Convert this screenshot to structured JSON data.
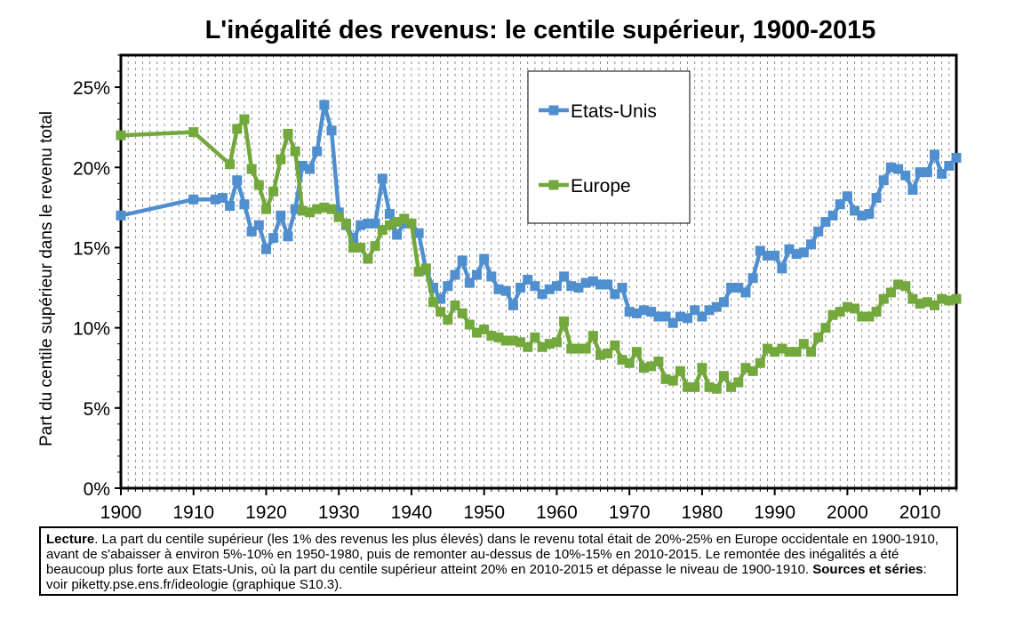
{
  "chart_data": {
    "type": "line",
    "title": "L'inégalité des revenus: le centile supérieur, 1900-2015",
    "ylabel": "Part du centile supérieur dans le revenu total",
    "xlabel": "",
    "xlim": [
      1900,
      2015
    ],
    "ylim": [
      0,
      0.27
    ],
    "xticks": [
      1900,
      1910,
      1920,
      1930,
      1940,
      1950,
      1960,
      1970,
      1980,
      1990,
      2000,
      2010
    ],
    "yticks": [
      0,
      0.05,
      0.1,
      0.15,
      0.2,
      0.25
    ],
    "ytick_labels": [
      "0%",
      "5%",
      "10%",
      "15%",
      "20%",
      "25%"
    ],
    "grid": "vertical dashed",
    "legend_position": "top-right",
    "series": [
      {
        "name": "Etats-Unis",
        "color": "#4f8fcf",
        "x": [
          1900,
          1910,
          1913,
          1914,
          1915,
          1916,
          1917,
          1918,
          1919,
          1920,
          1921,
          1922,
          1923,
          1924,
          1925,
          1926,
          1927,
          1928,
          1929,
          1930,
          1931,
          1932,
          1933,
          1934,
          1935,
          1936,
          1937,
          1938,
          1939,
          1940,
          1941,
          1942,
          1943,
          1944,
          1945,
          1946,
          1947,
          1948,
          1949,
          1950,
          1951,
          1952,
          1953,
          1954,
          1955,
          1956,
          1957,
          1958,
          1959,
          1960,
          1961,
          1962,
          1963,
          1964,
          1965,
          1966,
          1967,
          1968,
          1969,
          1970,
          1971,
          1972,
          1973,
          1974,
          1975,
          1976,
          1977,
          1978,
          1979,
          1980,
          1981,
          1982,
          1983,
          1984,
          1985,
          1986,
          1987,
          1988,
          1989,
          1990,
          1991,
          1992,
          1993,
          1994,
          1995,
          1996,
          1997,
          1998,
          1999,
          2000,
          2001,
          2002,
          2003,
          2004,
          2005,
          2006,
          2007,
          2008,
          2009,
          2010,
          2011,
          2012,
          2013,
          2014,
          2015
        ],
        "values": [
          0.17,
          0.18,
          0.18,
          0.181,
          0.176,
          0.192,
          0.177,
          0.16,
          0.164,
          0.149,
          0.156,
          0.17,
          0.157,
          0.174,
          0.201,
          0.199,
          0.21,
          0.239,
          0.223,
          0.172,
          0.164,
          0.156,
          0.164,
          0.165,
          0.165,
          0.193,
          0.171,
          0.158,
          0.165,
          0.165,
          0.159,
          0.136,
          0.125,
          0.118,
          0.126,
          0.133,
          0.142,
          0.128,
          0.133,
          0.143,
          0.132,
          0.124,
          0.123,
          0.114,
          0.125,
          0.13,
          0.126,
          0.121,
          0.124,
          0.126,
          0.132,
          0.126,
          0.125,
          0.128,
          0.129,
          0.127,
          0.127,
          0.121,
          0.125,
          0.11,
          0.109,
          0.111,
          0.11,
          0.107,
          0.107,
          0.103,
          0.107,
          0.106,
          0.111,
          0.107,
          0.111,
          0.113,
          0.116,
          0.125,
          0.125,
          0.122,
          0.131,
          0.148,
          0.145,
          0.145,
          0.137,
          0.149,
          0.146,
          0.147,
          0.152,
          0.16,
          0.166,
          0.17,
          0.177,
          0.182,
          0.173,
          0.17,
          0.171,
          0.181,
          0.192,
          0.2,
          0.199,
          0.195,
          0.186,
          0.197,
          0.197,
          0.208,
          0.196,
          0.201,
          0.206
        ]
      },
      {
        "name": "Europe",
        "color": "#73a83c",
        "x": [
          1900,
          1910,
          1915,
          1916,
          1917,
          1918,
          1919,
          1920,
          1921,
          1922,
          1923,
          1924,
          1925,
          1926,
          1927,
          1928,
          1929,
          1930,
          1931,
          1932,
          1933,
          1934,
          1935,
          1936,
          1937,
          1938,
          1939,
          1940,
          1941,
          1942,
          1943,
          1944,
          1945,
          1946,
          1947,
          1948,
          1949,
          1950,
          1951,
          1952,
          1953,
          1954,
          1955,
          1956,
          1957,
          1958,
          1959,
          1960,
          1961,
          1962,
          1963,
          1964,
          1965,
          1966,
          1967,
          1968,
          1969,
          1970,
          1971,
          1972,
          1973,
          1974,
          1975,
          1976,
          1977,
          1978,
          1979,
          1980,
          1981,
          1982,
          1983,
          1984,
          1985,
          1986,
          1987,
          1988,
          1989,
          1990,
          1991,
          1992,
          1993,
          1994,
          1995,
          1996,
          1997,
          1998,
          1999,
          2000,
          2001,
          2002,
          2003,
          2004,
          2005,
          2006,
          2007,
          2008,
          2009,
          2010,
          2011,
          2012,
          2013,
          2014,
          2015
        ],
        "values": [
          0.22,
          0.222,
          0.202,
          0.224,
          0.23,
          0.199,
          0.189,
          0.174,
          0.185,
          0.205,
          0.221,
          0.21,
          0.173,
          0.172,
          0.174,
          0.175,
          0.174,
          0.169,
          0.165,
          0.15,
          0.15,
          0.143,
          0.151,
          0.161,
          0.164,
          0.166,
          0.168,
          0.165,
          0.135,
          0.137,
          0.116,
          0.11,
          0.105,
          0.114,
          0.109,
          0.102,
          0.097,
          0.099,
          0.095,
          0.094,
          0.092,
          0.092,
          0.091,
          0.088,
          0.094,
          0.088,
          0.09,
          0.091,
          0.104,
          0.087,
          0.087,
          0.087,
          0.095,
          0.083,
          0.084,
          0.089,
          0.08,
          0.078,
          0.085,
          0.075,
          0.076,
          0.079,
          0.068,
          0.067,
          0.073,
          0.063,
          0.063,
          0.075,
          0.063,
          0.062,
          0.07,
          0.063,
          0.066,
          0.075,
          0.073,
          0.078,
          0.087,
          0.085,
          0.087,
          0.085,
          0.085,
          0.09,
          0.085,
          0.094,
          0.1,
          0.108,
          0.11,
          0.113,
          0.112,
          0.107,
          0.107,
          0.11,
          0.118,
          0.122,
          0.127,
          0.126,
          0.118,
          0.115,
          0.116,
          0.114,
          0.118,
          0.117,
          0.118
        ]
      }
    ]
  },
  "caption": {
    "lecture_label": "Lecture",
    "lecture_text": ". La part du centile supérieur (les 1% des revenus les plus élevés) dans le revenu total était de 20%-25% en Europe occidentale en 1900-1910, avant de s'abaisser à environ 5%-10% en 1950-1980, puis de remonter au-dessus de 10%-15% en 2010-2015. Le remontée des inégalités a été beaucoup plus forte aux Etats-Unis, où la part du centile supérieur atteint 20% en 2010-2015 et dépasse le niveau de 1900-1910.",
    "sources_label": "Sources et séries",
    "sources_text": ": voir piketty.pse.ens.fr/ideologie (graphique S10.3)."
  }
}
